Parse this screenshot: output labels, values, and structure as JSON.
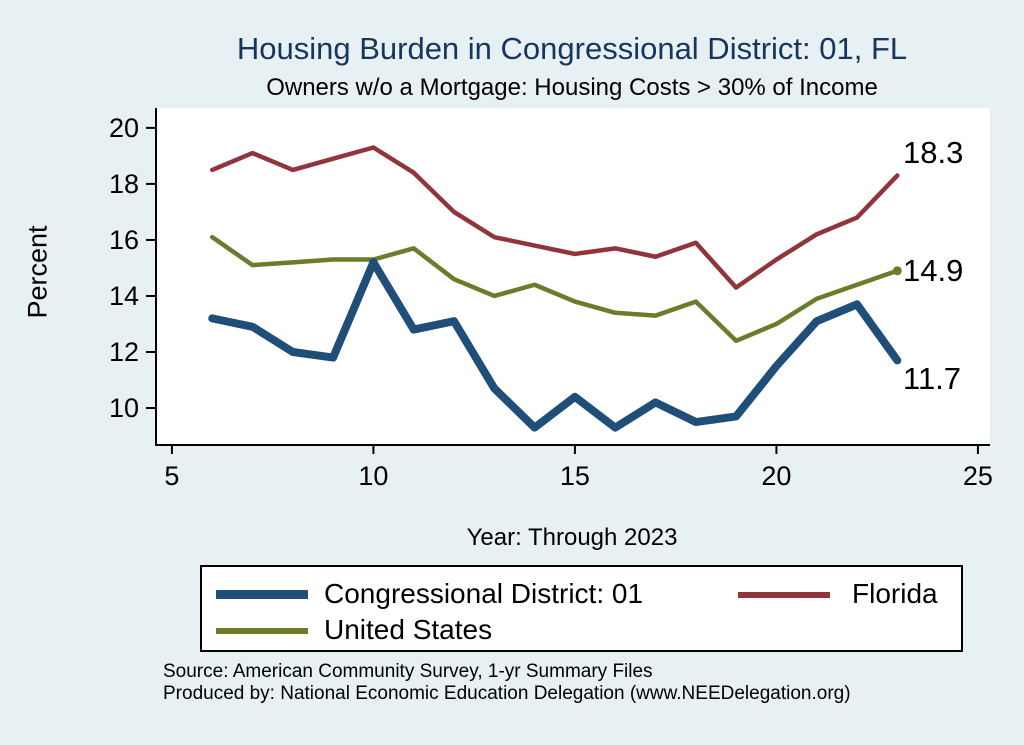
{
  "chart_data": {
    "type": "line",
    "title": "Housing Burden in Congressional District:  01, FL",
    "subtitle": "Owners w/o a Mortgage: Housing Costs > 30% of Income",
    "xlabel": "Year: Through 2023",
    "ylabel": "Percent",
    "x": [
      6,
      7,
      8,
      9,
      10,
      11,
      12,
      13,
      14,
      15,
      16,
      17,
      18,
      19,
      20,
      21,
      22,
      23
    ],
    "xticks": [
      5,
      10,
      15,
      20,
      25
    ],
    "yticks": [
      10,
      12,
      14,
      16,
      18,
      20
    ],
    "xlim": [
      4.58,
      25.3
    ],
    "ylim": [
      8.68,
      20.71
    ],
    "grid": false,
    "legend_position": "bottom",
    "series": [
      {
        "name": "Florida",
        "color": "#90353b",
        "line_width": 4.5,
        "end_label": "18.3",
        "end_marker": false,
        "values": [
          18.5,
          19.1,
          18.5,
          18.9,
          19.3,
          18.4,
          17.0,
          16.1,
          15.8,
          15.5,
          15.7,
          15.4,
          15.9,
          14.3,
          15.3,
          16.2,
          16.8,
          18.3
        ]
      },
      {
        "name": "United States",
        "color": "#697d2a",
        "line_width": 4.5,
        "end_label": "14.9",
        "end_marker": true,
        "values": [
          16.1,
          15.1,
          15.2,
          15.3,
          15.3,
          15.7,
          14.6,
          14.0,
          14.4,
          13.8,
          13.4,
          13.3,
          13.8,
          12.4,
          13.0,
          13.9,
          14.4,
          14.9
        ]
      },
      {
        "name": "Congressional District:  01",
        "color": "#1f4e79",
        "line_width": 8,
        "end_label": "11.7",
        "end_marker": false,
        "values": [
          13.2,
          12.9,
          12.0,
          11.8,
          15.2,
          12.8,
          13.1,
          10.7,
          9.3,
          10.4,
          9.3,
          10.2,
          9.5,
          9.7,
          11.5,
          13.1,
          13.7,
          11.7
        ]
      }
    ]
  },
  "source": {
    "line1": "Source: American Community Survey, 1-yr Summary Files",
    "line2": "Produced by: National Economic Education Delegation (www.NEEDelegation.org)"
  }
}
